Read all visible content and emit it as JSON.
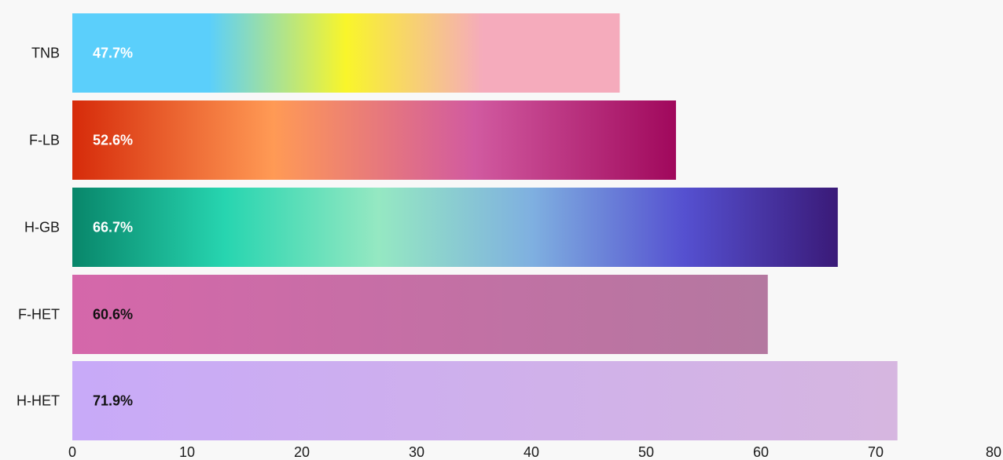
{
  "chart_data": {
    "type": "bar",
    "orientation": "horizontal",
    "categories": [
      "TNB",
      "F-LB",
      "H-GB",
      "F-HET",
      "H-HET"
    ],
    "values": [
      47.7,
      52.6,
      66.7,
      60.6,
      71.9
    ],
    "value_labels": [
      "47.7%",
      "52.6%",
      "66.7%",
      "60.6%",
      "71.9%"
    ],
    "xlim": [
      0,
      80
    ],
    "xticks": [
      0,
      10,
      20,
      30,
      40,
      50,
      60,
      70,
      80
    ],
    "title": "",
    "xlabel": "",
    "ylabel": "",
    "grid": false,
    "legend": false,
    "background": "#f8f8f8",
    "bar_gradients": [
      [
        "#5bcffb",
        "#5bcffb",
        "#f9f52a",
        "#f5abbc",
        "#f5abbc"
      ],
      [
        "#d62b0a",
        "#ff9a55",
        "#d15aa0",
        "#a0085c"
      ],
      [
        "#08866a",
        "#27d5b0",
        "#95e8c2",
        "#7fb0e0",
        "#5550d0",
        "#3a1a78"
      ],
      [
        "#d567aa",
        "#b478a0"
      ],
      [
        "#c8aaf8",
        "#d6b6e0"
      ]
    ],
    "label_colors": [
      "#ffffff",
      "#ffffff",
      "#ffffff",
      "#111111",
      "#111111"
    ]
  }
}
